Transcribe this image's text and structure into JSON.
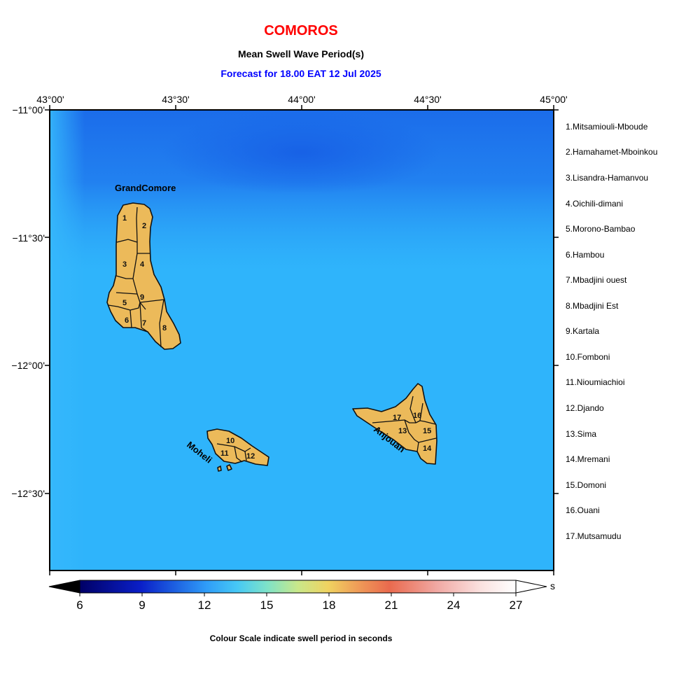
{
  "header": {
    "title": "COMOROS",
    "subtitle": "Mean Swell Wave Period(s)",
    "forecast": "Forecast for  18.00 EAT 12 Jul 2025",
    "title_color": "#ff0000",
    "forecast_color": "#0000ff"
  },
  "axes": {
    "lon_labels": [
      "43°00'",
      "43°30'",
      "44°00'",
      "44°30'",
      "45°00'"
    ],
    "lat_labels": [
      "−11°00'",
      "−11°30'",
      "−12°00'",
      "−12°30'"
    ]
  },
  "islands": {
    "grand_comore": "GrandComore",
    "moheli": "Moheli",
    "anjouan": "Anjouan"
  },
  "region_numbers": [
    "1",
    "2",
    "3",
    "4",
    "5",
    "6",
    "7",
    "8",
    "9",
    "10",
    "11",
    "12",
    "13",
    "14",
    "15",
    "16",
    "17"
  ],
  "legend": [
    "1.Mitsamiouli-Mboude",
    "2.Hamahamet-Mboinkou",
    "3.Lisandra-Hamanvou",
    "4.Oichili-dimani",
    "5.Morono-Bambao",
    "6.Hambou",
    "7.Mbadjini ouest",
    "8.Mbadjini Est",
    "9.Kartala",
    "10.Fomboni",
    "11.Nioumiachioi",
    "12.Djando",
    "13.Sima",
    "14.Mremani",
    "15.Domoni",
    "16.Ouani",
    "17.Mutsamudu"
  ],
  "colorbar": {
    "labels": [
      "6",
      "9",
      "12",
      "15",
      "18",
      "21",
      "24",
      "27"
    ],
    "unit": "s",
    "caption": "Colour Scale indicate swell period in seconds",
    "range_seconds": [
      6,
      27
    ]
  },
  "field": {
    "dominant_period_seconds": 12,
    "minimum_area_period_seconds": 10.5,
    "colors": {
      "ocean": "#2fb4fb",
      "north": "#1e73ec",
      "land": "#ecba5a"
    }
  }
}
